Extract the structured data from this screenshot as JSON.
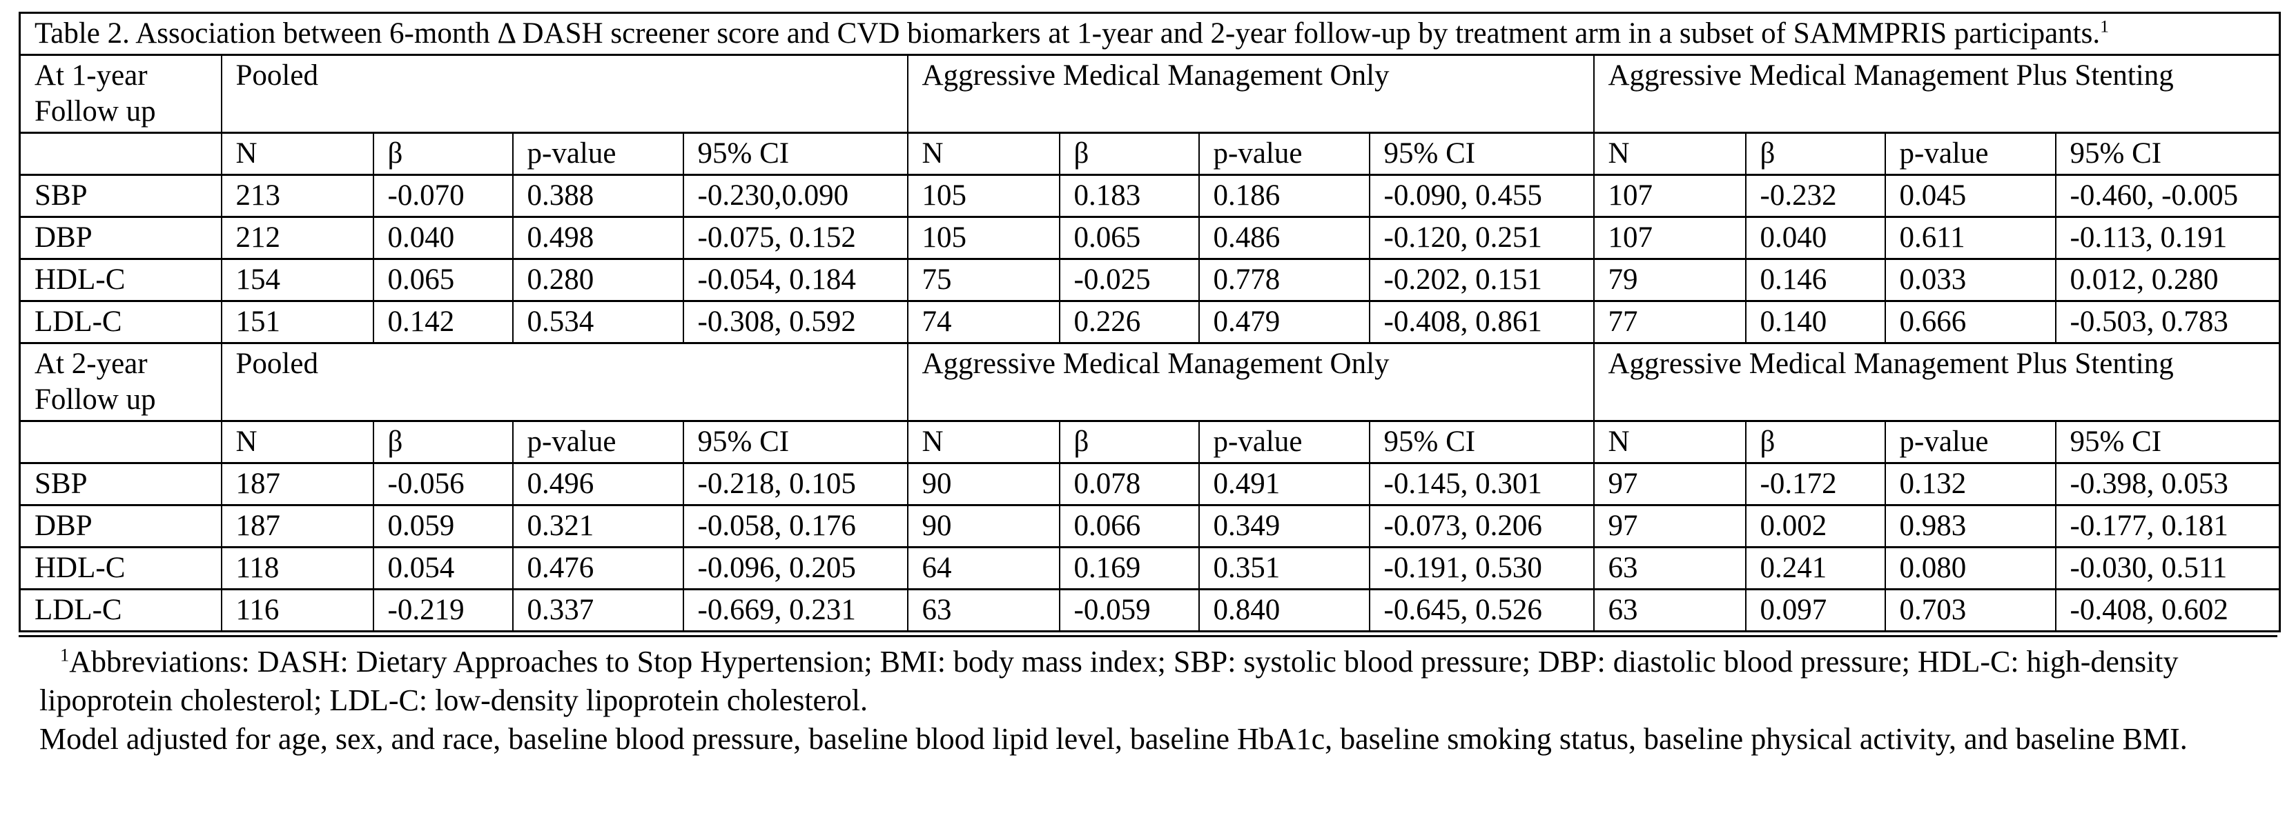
{
  "title": "Table 2. Association between 6-month Δ DASH screener score and CVD biomarkers at 1-year and 2-year follow-up by treatment arm in a subset of SAMMPRIS participants.",
  "title_superscript": "1",
  "column_headers": [
    "N",
    "β",
    "p-value",
    "95% CI"
  ],
  "sections": [
    {
      "period": "At 1-year Follow up",
      "groups": [
        "Pooled",
        "Aggressive Medical Management Only",
        "Aggressive Medical Management Plus Stenting"
      ],
      "rows": [
        {
          "label": "SBP",
          "cells": [
            "213",
            "-0.070",
            "0.388",
            "-0.230,0.090",
            "105",
            "0.183",
            "0.186",
            "-0.090, 0.455",
            "107",
            "-0.232",
            "0.045",
            "-0.460, -0.005"
          ],
          "bold": [
            10
          ]
        },
        {
          "label": "DBP",
          "cells": [
            "212",
            "0.040",
            "0.498",
            "-0.075, 0.152",
            "105",
            "0.065",
            "0.486",
            "-0.120, 0.251",
            "107",
            "0.040",
            "0.611",
            "-0.113, 0.191"
          ],
          "bold": []
        },
        {
          "label": "HDL-C",
          "cells": [
            "154",
            "0.065",
            "0.280",
            "-0.054, 0.184",
            "75",
            "-0.025",
            "0.778",
            "-0.202, 0.151",
            "79",
            "0.146",
            "0.033",
            "0.012, 0.280"
          ],
          "bold": [
            10
          ]
        },
        {
          "label": "LDL-C",
          "cells": [
            "151",
            "0.142",
            "0.534",
            "-0.308, 0.592",
            "74",
            "0.226",
            "0.479",
            "-0.408, 0.861",
            "77",
            "0.140",
            "0.666",
            "-0.503, 0.783"
          ],
          "bold": []
        }
      ]
    },
    {
      "period": "At 2-year Follow up",
      "groups": [
        "Pooled",
        "Aggressive Medical Management Only",
        "Aggressive Medical Management Plus Stenting"
      ],
      "rows": [
        {
          "label": "SBP",
          "cells": [
            "187",
            "-0.056",
            "0.496",
            "-0.218, 0.105",
            "90",
            "0.078",
            "0.491",
            "-0.145, 0.301",
            "97",
            "-0.172",
            "0.132",
            "-0.398, 0.053"
          ],
          "bold": []
        },
        {
          "label": "DBP",
          "cells": [
            "187",
            "0.059",
            "0.321",
            "-0.058, 0.176",
            "90",
            "0.066",
            "0.349",
            "-0.073, 0.206",
            "97",
            "0.002",
            "0.983",
            "-0.177, 0.181"
          ],
          "bold": []
        },
        {
          "label": "HDL-C",
          "cells": [
            "118",
            "0.054",
            "0.476",
            "-0.096, 0.205",
            "64",
            "0.169",
            "0.351",
            "-0.191, 0.530",
            "63",
            "0.241",
            "0.080",
            "-0.030, 0.511"
          ],
          "bold": []
        },
        {
          "label": "LDL-C",
          "cells": [
            "116",
            "-0.219",
            "0.337",
            "-0.669, 0.231",
            "63",
            "-0.059",
            "0.840",
            "-0.645, 0.526",
            "63",
            "0.097",
            "0.703",
            "-0.408, 0.602"
          ],
          "bold": []
        }
      ]
    }
  ],
  "footnotes": {
    "abbreviations_sup": "1",
    "abbreviations": "Abbreviations: DASH: Dietary Approaches to Stop Hypertension; BMI: body mass index; SBP: systolic blood pressure; DBP: diastolic blood pressure; HDL-C: high-density lipoprotein cholesterol; LDL-C: low-density lipoprotein cholesterol.",
    "model": "Model adjusted for age, sex, and race, baseline blood pressure, baseline blood lipid level, baseline HbA1c, baseline smoking status, baseline physical activity, and baseline BMI."
  },
  "colors": {
    "border": "#000000",
    "background": "#ffffff",
    "text": "#000000"
  }
}
